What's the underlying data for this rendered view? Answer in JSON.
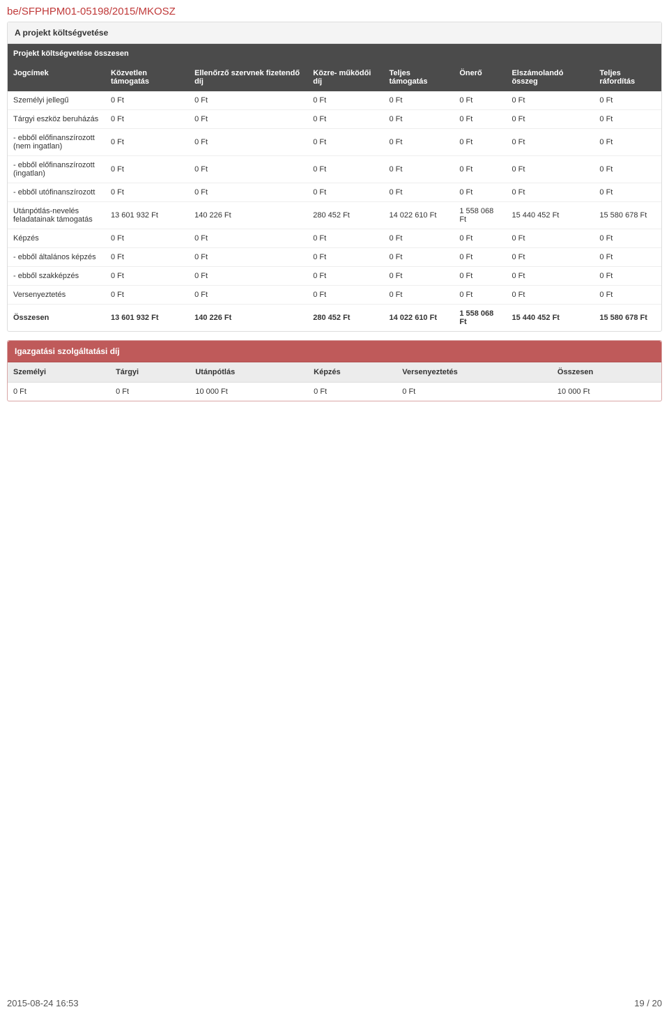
{
  "page_id": "be/SFPHPM01-05198/2015/MKOSZ",
  "panel1_title": "A projekt költségvetése",
  "budget_table": {
    "section_header": "Projekt költségvetése összesen",
    "columns": [
      "Jogcímek",
      "Közvetlen támogatás",
      "Ellenőrző szervnek fizetendő díj",
      "Közre- működői díj",
      "Teljes támogatás",
      "Önerő",
      "Elszámolandó összeg",
      "Teljes ráfordítás"
    ],
    "rows": [
      {
        "label": "Személyi jellegű",
        "cells": [
          "0 Ft",
          "0 Ft",
          "0 Ft",
          "0 Ft",
          "0 Ft",
          "0 Ft",
          "0 Ft"
        ]
      },
      {
        "label": "Tárgyi eszköz beruházás",
        "cells": [
          "0 Ft",
          "0 Ft",
          "0 Ft",
          "0 Ft",
          "0 Ft",
          "0 Ft",
          "0 Ft"
        ]
      },
      {
        "label": "- ebből előfinanszírozott (nem ingatlan)",
        "cells": [
          "0 Ft",
          "0 Ft",
          "0 Ft",
          "0 Ft",
          "0 Ft",
          "0 Ft",
          "0 Ft"
        ]
      },
      {
        "label": "- ebből előfinanszírozott (ingatlan)",
        "cells": [
          "0 Ft",
          "0 Ft",
          "0 Ft",
          "0 Ft",
          "0 Ft",
          "0 Ft",
          "0 Ft"
        ]
      },
      {
        "label": "- ebből utófinanszírozott",
        "cells": [
          "0 Ft",
          "0 Ft",
          "0 Ft",
          "0 Ft",
          "0 Ft",
          "0 Ft",
          "0 Ft"
        ]
      },
      {
        "label": "Utánpótlás-nevelés feladatainak támogatás",
        "cells": [
          "13 601 932 Ft",
          "140 226 Ft",
          "280 452 Ft",
          "14 022 610 Ft",
          "1 558 068 Ft",
          "15 440 452 Ft",
          "15 580 678 Ft"
        ]
      },
      {
        "label": "Képzés",
        "cells": [
          "0 Ft",
          "0 Ft",
          "0 Ft",
          "0 Ft",
          "0 Ft",
          "0 Ft",
          "0 Ft"
        ]
      },
      {
        "label": "- ebből általános képzés",
        "cells": [
          "0 Ft",
          "0 Ft",
          "0 Ft",
          "0 Ft",
          "0 Ft",
          "0 Ft",
          "0 Ft"
        ]
      },
      {
        "label": "- ebből szakképzés",
        "cells": [
          "0 Ft",
          "0 Ft",
          "0 Ft",
          "0 Ft",
          "0 Ft",
          "0 Ft",
          "0 Ft"
        ]
      },
      {
        "label": "Versenyeztetés",
        "cells": [
          "0 Ft",
          "0 Ft",
          "0 Ft",
          "0 Ft",
          "0 Ft",
          "0 Ft",
          "0 Ft"
        ]
      },
      {
        "label": "Összesen",
        "cells": [
          "13 601 932 Ft",
          "140 226 Ft",
          "280 452 Ft",
          "14 022 610 Ft",
          "1 558 068 Ft",
          "15 440 452 Ft",
          "15 580 678 Ft"
        ],
        "bold": true
      }
    ]
  },
  "admin_table": {
    "title": "Igazgatási szolgáltatási díj",
    "columns": [
      "Személyi",
      "Tárgyi",
      "Utánpótlás",
      "Képzés",
      "Versenyeztetés",
      "Összesen"
    ],
    "row": [
      "0 Ft",
      "0 Ft",
      "10 000 Ft",
      "0 Ft",
      "0 Ft",
      "10 000 Ft"
    ]
  },
  "footer": {
    "timestamp": "2015-08-24 16:53",
    "page_num": "19 / 20"
  },
  "colors": {
    "page_id": "#c03a3a",
    "dark_header_bg": "#4b4b4b",
    "danger_bg": "#bf5a5a",
    "gray_head_bg": "#ececec",
    "border": "#dddddd"
  }
}
